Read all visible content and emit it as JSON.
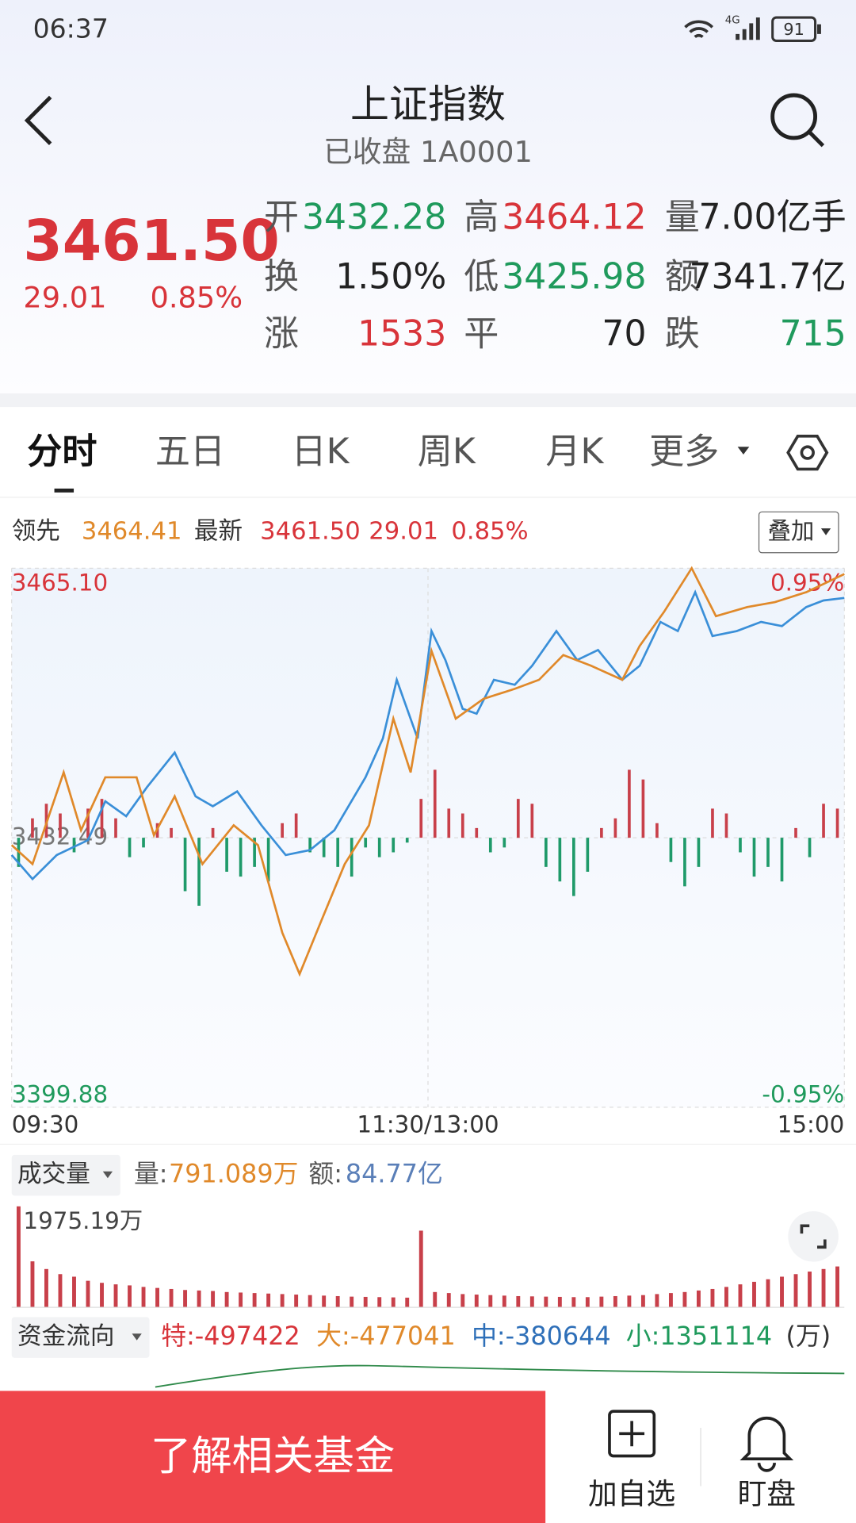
{
  "status_bar": {
    "time": "06:37",
    "network": "4G",
    "battery": "91"
  },
  "header": {
    "title": "上证指数",
    "subtitle": "已收盘 1A0001"
  },
  "quote": {
    "price": "3461.50",
    "change": "29.01",
    "change_pct": "0.85%",
    "stats": [
      [
        {
          "label": "开",
          "value": "3432.28",
          "color": "#1f9a5c"
        },
        {
          "label": "高",
          "value": "3464.12",
          "color": "#d8343a"
        },
        {
          "label": "量",
          "value": "7.00亿手",
          "color": "#222222"
        }
      ],
      [
        {
          "label": "换",
          "value": "1.50%",
          "color": "#222222"
        },
        {
          "label": "低",
          "value": "3425.98",
          "color": "#1f9a5c"
        },
        {
          "label": "额",
          "value": "7341.7亿",
          "color": "#222222"
        }
      ],
      [
        {
          "label": "涨",
          "value": "1533",
          "color": "#d8343a"
        },
        {
          "label": "平",
          "value": "70",
          "color": "#222222"
        },
        {
          "label": "跌",
          "value": "715",
          "color": "#1f9a5c"
        }
      ]
    ]
  },
  "tabs": [
    "分时",
    "五日",
    "日K",
    "周K",
    "月K",
    "更多"
  ],
  "legend": {
    "lead_value": "3464.41",
    "latest_value": "3461.50",
    "change": "29.01",
    "change_pct": "0.85%",
    "overlay_button": "叠加"
  },
  "chart_data": [
    {
      "type": "line",
      "xlim": [
        0,
        240
      ],
      "xticks": [
        {
          "value": 0,
          "label": "09:30"
        },
        {
          "value": 120,
          "label": "11:30/13:00"
        },
        {
          "value": 240,
          "label": "15:00"
        }
      ],
      "ylim": [
        3399.88,
        3465.1
      ],
      "yticks": [
        {
          "value": 3465.1,
          "label": "3465.10"
        },
        {
          "value": 3432.49,
          "label": "3432.49"
        },
        {
          "value": 3399.88,
          "label": "3399.88"
        }
      ],
      "y2lim": [
        -0.95,
        0.95
      ],
      "y2ticks": [
        {
          "value": 0.95,
          "label": "0.95%"
        },
        {
          "value": -0.95,
          "label": "-0.95%"
        }
      ],
      "series": [
        {
          "name": "最新",
          "color": "#3a8fd8",
          "x": [
            0,
            6,
            13,
            22,
            27,
            33,
            39,
            47,
            53,
            58,
            65,
            72,
            79,
            86,
            93,
            102,
            107,
            111,
            117,
            121,
            125,
            130,
            134,
            139,
            145,
            150,
            157,
            163,
            169,
            176,
            181,
            187,
            192,
            197,
            202,
            209,
            216,
            222,
            229,
            234,
            240
          ],
          "values": [
            3430.4,
            3427.5,
            3430.4,
            3432.2,
            3436.9,
            3435.1,
            3438.6,
            3442.8,
            3437.5,
            3436.3,
            3438.1,
            3434.0,
            3430.4,
            3431.0,
            3433.4,
            3439.8,
            3444.5,
            3451.6,
            3444.5,
            3457.5,
            3454.0,
            3448.1,
            3447.5,
            3451.6,
            3451.0,
            3453.3,
            3457.5,
            3454.0,
            3455.2,
            3451.6,
            3453.3,
            3458.6,
            3457.5,
            3462.2,
            3456.9,
            3457.5,
            3458.6,
            3458.1,
            3460.4,
            3461.2,
            3461.5
          ]
        },
        {
          "name": "领先",
          "color": "#e0892a",
          "x": [
            0,
            6,
            15,
            20,
            27,
            36,
            41,
            47,
            55,
            64,
            71,
            78,
            83,
            89,
            96,
            103,
            110,
            115,
            121,
            128,
            136,
            145,
            152,
            159,
            167,
            176,
            181,
            188,
            196,
            203,
            212,
            220,
            229,
            240
          ],
          "values": [
            3431.6,
            3429.3,
            3440.4,
            3433.4,
            3439.8,
            3439.8,
            3432.8,
            3437.5,
            3429.3,
            3434.0,
            3431.6,
            3421.0,
            3416.0,
            3422.2,
            3429.3,
            3434.0,
            3446.9,
            3440.4,
            3455.1,
            3446.9,
            3449.3,
            3450.5,
            3451.6,
            3454.6,
            3453.3,
            3451.6,
            3455.7,
            3459.8,
            3465.1,
            3459.3,
            3460.4,
            3461.0,
            3462.2,
            3464.4
          ]
        }
      ],
      "grid": true
    },
    {
      "type": "flow-bar",
      "up_color": "#c8404a",
      "down_color": "#1f9a6a",
      "ylim": [
        -80,
        80
      ],
      "values": [
        -30,
        20,
        35,
        25,
        -15,
        30,
        40,
        20,
        -20,
        -10,
        15,
        10,
        -55,
        -70,
        10,
        -35,
        -40,
        -30,
        -45,
        15,
        25,
        -15,
        -20,
        -30,
        -40,
        -10,
        -20,
        -15,
        -5,
        40,
        70,
        30,
        25,
        10,
        -15,
        -10,
        40,
        35,
        -30,
        -45,
        -60,
        -35,
        10,
        20,
        70,
        60,
        15,
        -25,
        -50,
        -30,
        30,
        25,
        -15,
        -40,
        -30,
        -45,
        10,
        -20,
        35,
        30
      ]
    },
    {
      "type": "bar",
      "title": "成交量",
      "total_volume_label": "量:",
      "total_volume": "791.089万",
      "total_amount_label": "额:",
      "total_amount": "84.77亿",
      "color": "#c8404a",
      "ylim": [
        0,
        1975.19
      ],
      "yticks": [
        {
          "value": 1975.19,
          "label": "1975.19万"
        }
      ],
      "values": [
        1975.19,
        900,
        750,
        650,
        600,
        520,
        480,
        450,
        430,
        400,
        380,
        360,
        340,
        330,
        320,
        300,
        290,
        280,
        270,
        260,
        250,
        240,
        230,
        220,
        210,
        205,
        200,
        195,
        190,
        1500,
        300,
        280,
        260,
        250,
        240,
        230,
        220,
        215,
        210,
        205,
        200,
        200,
        210,
        220,
        230,
        240,
        260,
        280,
        300,
        330,
        360,
        400,
        450,
        500,
        550,
        600,
        650,
        700,
        750,
        800
      ]
    }
  ],
  "fund_flow": {
    "title": "资金流向",
    "special": "特:-497422",
    "large": "大:-477041",
    "medium": "中:-380644",
    "small": "小:1351114",
    "unit": "(万)"
  },
  "bottom_bar": {
    "fund_button": "了解相关基金",
    "watchlist": "加自选",
    "monitor": "盯盘"
  }
}
